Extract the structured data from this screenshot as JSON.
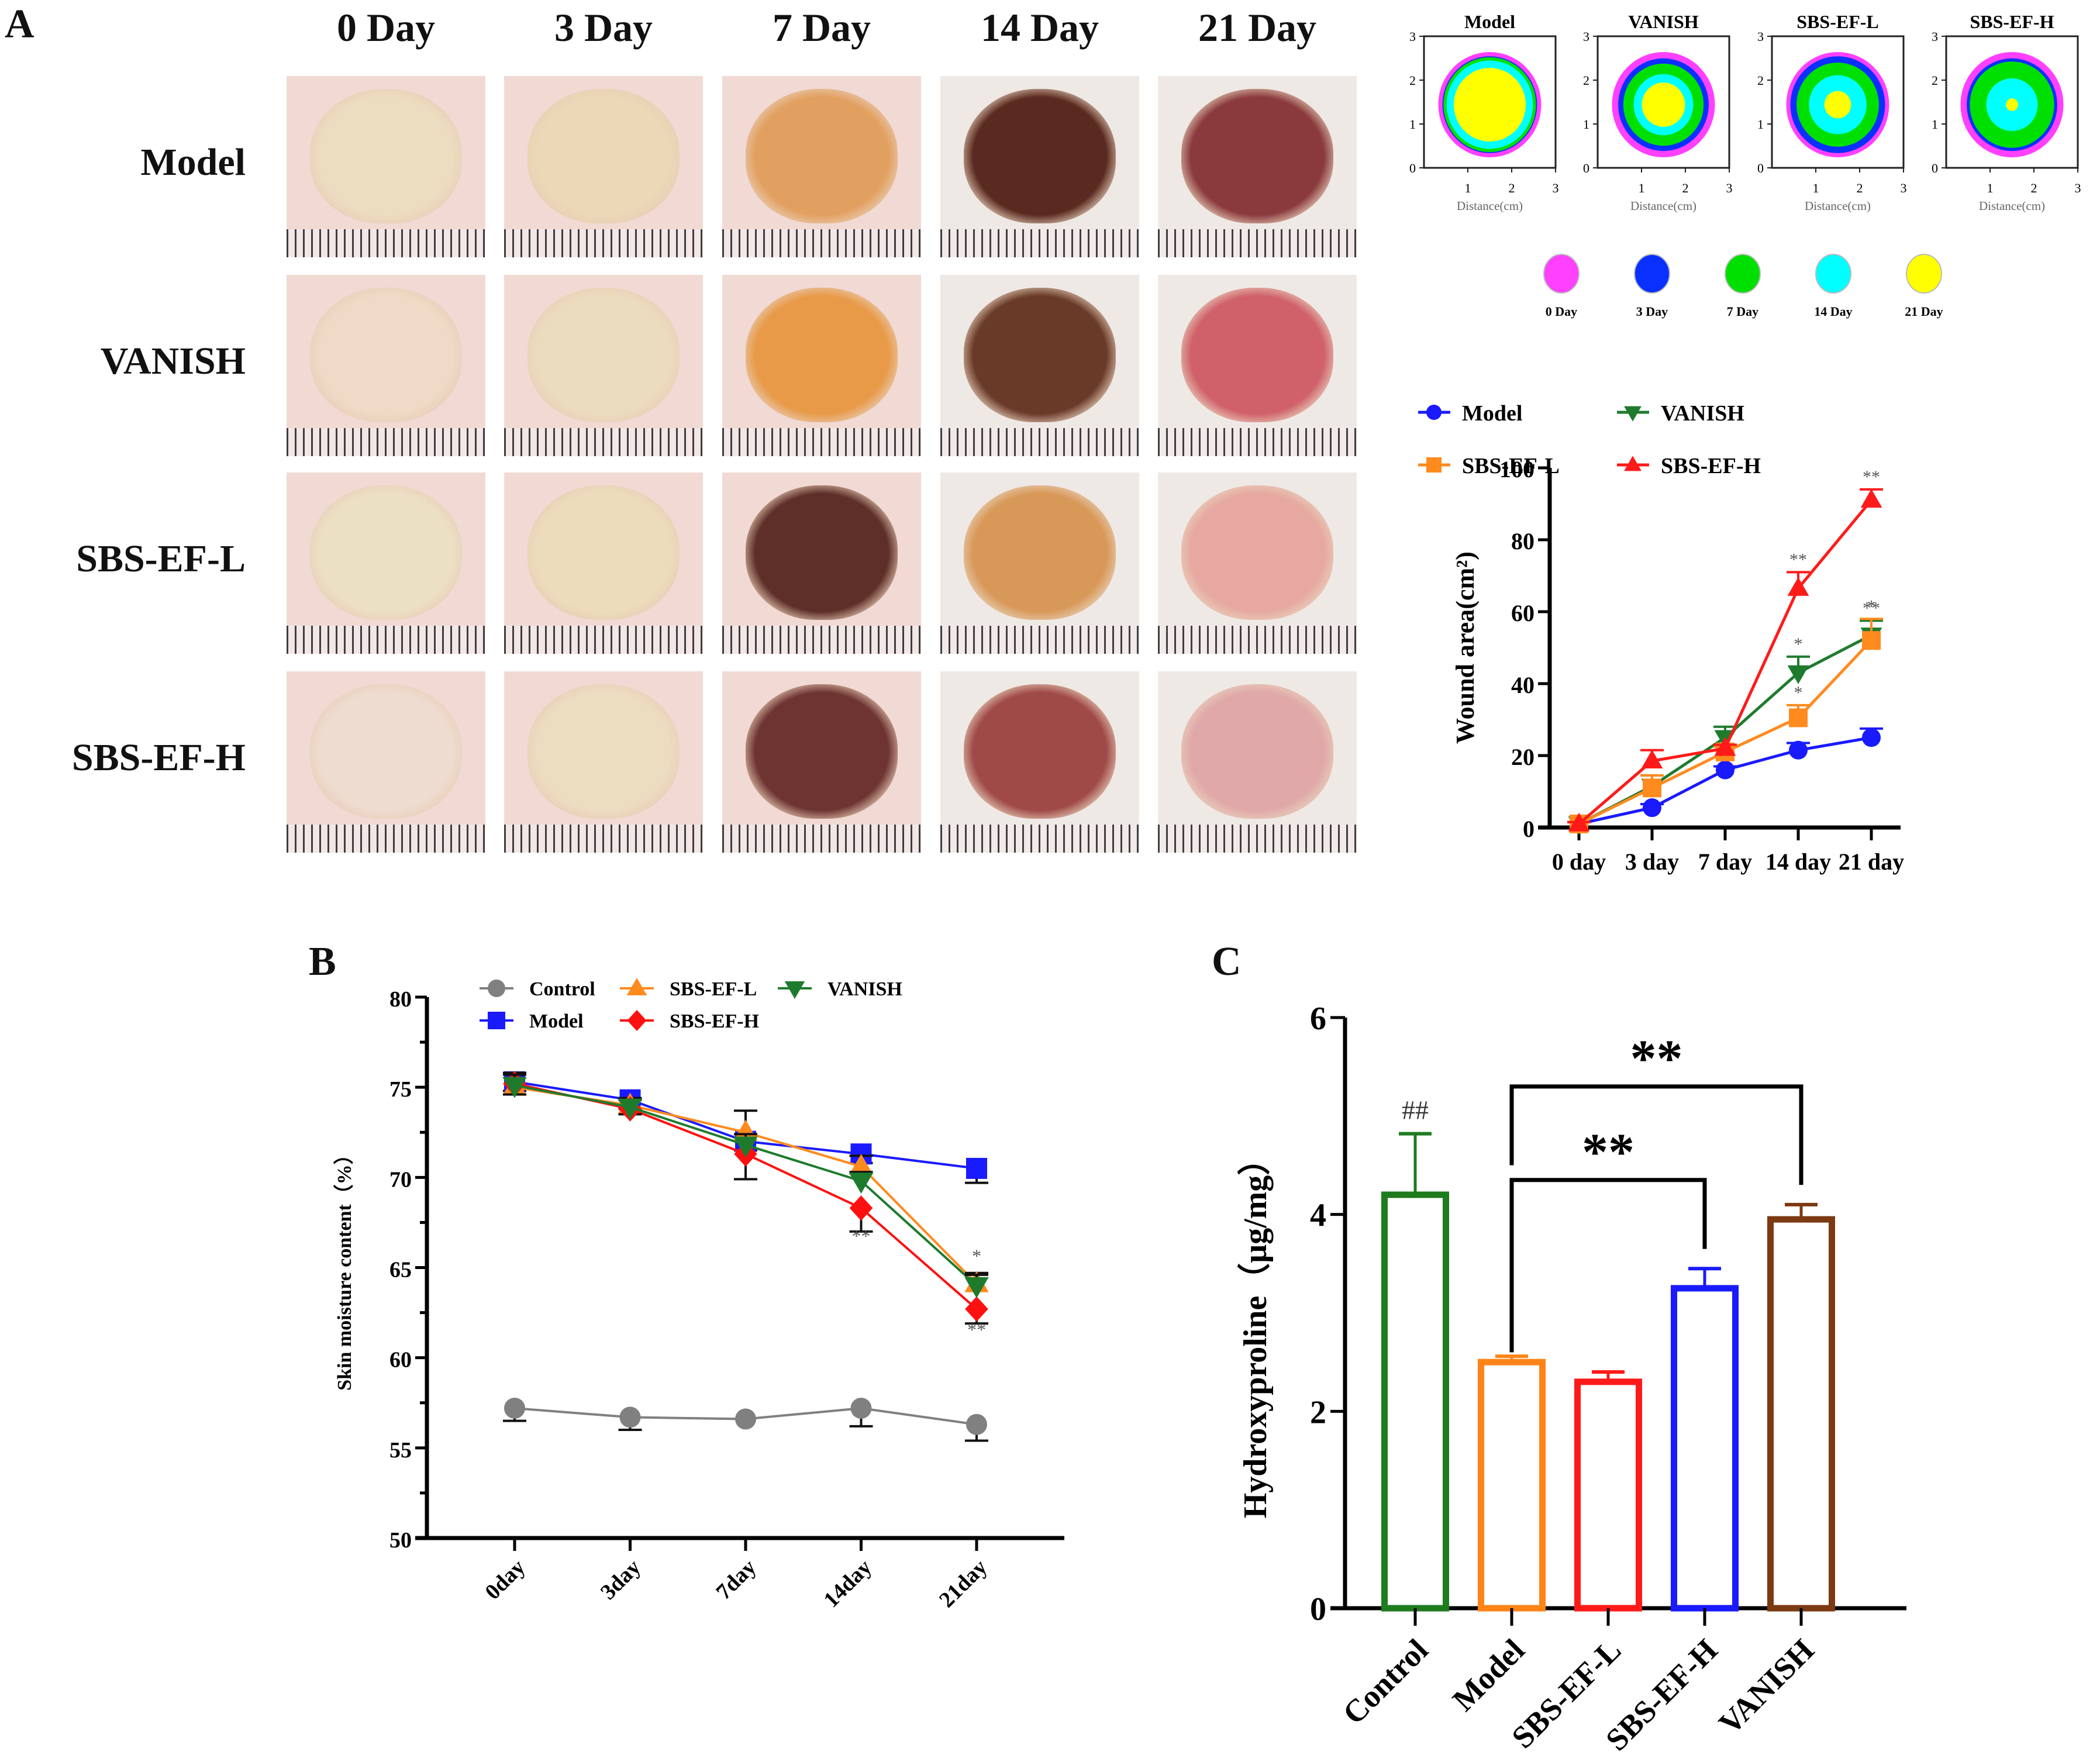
{
  "panel_labels": {
    "a": "A",
    "b": "B",
    "c": "C"
  },
  "photo_grid": {
    "columns": [
      "0 Day",
      "3 Day",
      "7 Day",
      "14 Day",
      "21 Day"
    ],
    "rows": [
      "Model",
      "VANISH",
      "SBS-EF-L",
      "SBS-EF-H"
    ],
    "wound_colors": [
      [
        "#ecdcc0",
        "#ead8b6",
        "#e2a060",
        "#5a2a20",
        "#8a3a3c"
      ],
      [
        "#eedac6",
        "#ecdcbe",
        "#e89a48",
        "#6a3a28",
        "#d0606a"
      ],
      [
        "#ece0c4",
        "#ecdcbc",
        "#5e2e28",
        "#d89858",
        "#e6a8a0"
      ],
      [
        "#eedcd0",
        "#ecdcc0",
        "#6e3432",
        "#a04a48",
        "#e0a8a8"
      ]
    ]
  },
  "contour_maps": {
    "titles": [
      "Model",
      "VANISH",
      "SBS-EF-L",
      "SBS-EF-H"
    ],
    "y_ticks": [
      "0",
      "1",
      "2",
      "3"
    ],
    "x_ticks": [
      "1",
      "2",
      "3"
    ],
    "xlabel": "Distance(cm)",
    "legend": [
      {
        "label": "0 Day",
        "color": "#ff40ff"
      },
      {
        "label": "3 Day",
        "color": "#0a30ff"
      },
      {
        "label": "7 Day",
        "color": "#00e000"
      },
      {
        "label": "14 Day",
        "color": "#00ffff"
      },
      {
        "label": "21 Day",
        "color": "#ffff00"
      }
    ],
    "ring_fractions": [
      [
        1.0,
        0.92,
        0.9,
        0.84,
        0.7
      ],
      [
        1.0,
        0.88,
        0.78,
        0.58,
        0.42
      ],
      [
        1.0,
        0.92,
        0.8,
        0.56,
        0.26
      ],
      [
        1.0,
        0.88,
        0.82,
        0.5,
        0.12
      ]
    ]
  },
  "chart_data": [
    {
      "id": "wound-area",
      "type": "line",
      "title": "",
      "xlabel": "",
      "ylabel": "Wound area(cm²)",
      "categories": [
        "0 day",
        "3 day",
        "7 day",
        "14 day",
        "21 day"
      ],
      "ylim": [
        0,
        100
      ],
      "yticks": [
        0,
        20,
        40,
        60,
        80,
        100
      ],
      "legend_position": "top",
      "series": [
        {
          "name": "Model",
          "color": "#1a1aff",
          "marker": "circle",
          "values": [
            1,
            5.5,
            16,
            21.5,
            25
          ],
          "err": [
            0.5,
            1,
            1,
            2,
            2.5
          ]
        },
        {
          "name": "VANISH",
          "color": "#1e7b2e",
          "marker": "triangle-down",
          "values": [
            1,
            11.5,
            25,
            43,
            53.5
          ],
          "err": [
            0.5,
            3,
            3,
            4.5,
            4
          ]
        },
        {
          "name": "SBS-EF-L",
          "color": "#ff8a1e",
          "marker": "square",
          "values": [
            1,
            11,
            21,
            30.5,
            52
          ],
          "err": [
            0.5,
            3.5,
            1.5,
            3.5,
            6
          ]
        },
        {
          "name": "SBS-EF-H",
          "color": "#ff1a1a",
          "marker": "triangle-up",
          "values": [
            1,
            18.5,
            22,
            66.5,
            91
          ],
          "err": [
            0.5,
            3,
            1,
            4.5,
            3
          ]
        }
      ],
      "annotations": [
        {
          "series": "SBS-EF-H",
          "x": "14 day",
          "text": "**"
        },
        {
          "series": "SBS-EF-H",
          "x": "21 day",
          "text": "**"
        },
        {
          "series": "VANISH",
          "x": "14 day",
          "text": "*"
        },
        {
          "series": "SBS-EF-L",
          "x": "14 day",
          "text": "*"
        },
        {
          "series": "VANISH",
          "x": "21 day",
          "text": "**"
        },
        {
          "series": "SBS-EF-L",
          "x": "21 day",
          "text": "*"
        }
      ]
    },
    {
      "id": "skin-moisture",
      "type": "line",
      "title": "",
      "xlabel": "",
      "ylabel": "Skin moisture content（%）",
      "categories": [
        "0day",
        "3day",
        "7day",
        "14day",
        "21day"
      ],
      "ylim": [
        50,
        80
      ],
      "yticks": [
        50,
        55,
        60,
        65,
        70,
        75,
        80
      ],
      "legend_position": "top",
      "series": [
        {
          "name": "Control",
          "color": "#808080",
          "marker": "circle",
          "values": [
            57.2,
            56.7,
            56.6,
            57.2,
            56.3
          ],
          "err": [
            0.7,
            0.7,
            0,
            1.0,
            0.9
          ]
        },
        {
          "name": "Model",
          "color": "#1a1aff",
          "marker": "square",
          "values": [
            75.3,
            74.3,
            72.0,
            71.3,
            70.5
          ],
          "err": [
            0.5,
            0.5,
            0.5,
            0.5,
            0.8
          ]
        },
        {
          "name": "SBS-EF-L",
          "color": "#ff8a1e",
          "marker": "triangle-up",
          "values": [
            75.0,
            74.0,
            72.5,
            70.6,
            64.1
          ],
          "err": [
            0.8,
            0.4,
            1.2,
            0.6,
            0.6
          ]
        },
        {
          "name": "SBS-EF-H",
          "color": "#ff1010",
          "marker": "diamond",
          "values": [
            75.2,
            73.8,
            71.3,
            68.3,
            62.7
          ],
          "err": [
            0.6,
            0.3,
            1.4,
            1.3,
            0.8
          ]
        },
        {
          "name": "VANISH",
          "color": "#1e7b2e",
          "marker": "triangle-down",
          "values": [
            75.1,
            73.9,
            71.8,
            69.8,
            64.0
          ],
          "err": [
            0.6,
            0.4,
            0.6,
            0.5,
            0.6
          ]
        }
      ],
      "annotations": [
        {
          "x": "14day",
          "text": "**",
          "position": "below"
        },
        {
          "x": "21day",
          "text": "*",
          "position": "above"
        },
        {
          "x": "21day",
          "text": "**",
          "position": "below"
        }
      ]
    },
    {
      "id": "hydroxyproline",
      "type": "bar",
      "title": "",
      "xlabel": "",
      "ylabel": "Hydroxyproline（μg/mg）",
      "categories": [
        "Control",
        "Model",
        "SBS-EF-L",
        "SBS-EF-H",
        "VANISH"
      ],
      "values": [
        4.2,
        2.5,
        2.3,
        3.25,
        3.95
      ],
      "err": [
        0.62,
        0.06,
        0.1,
        0.2,
        0.15
      ],
      "colors": [
        "#1e7b1e",
        "#ff8418",
        "#ff1a1a",
        "#1a1aff",
        "#7b3a12"
      ],
      "ylim": [
        0,
        6
      ],
      "yticks": [
        0,
        2,
        4,
        6
      ],
      "bar_annotations": [
        {
          "category": "Control",
          "text": "##"
        }
      ],
      "brackets": [
        {
          "from": "Model",
          "to": "SBS-EF-H",
          "text": "**"
        },
        {
          "from": "Model",
          "to": "VANISH",
          "text": "**"
        }
      ]
    }
  ]
}
